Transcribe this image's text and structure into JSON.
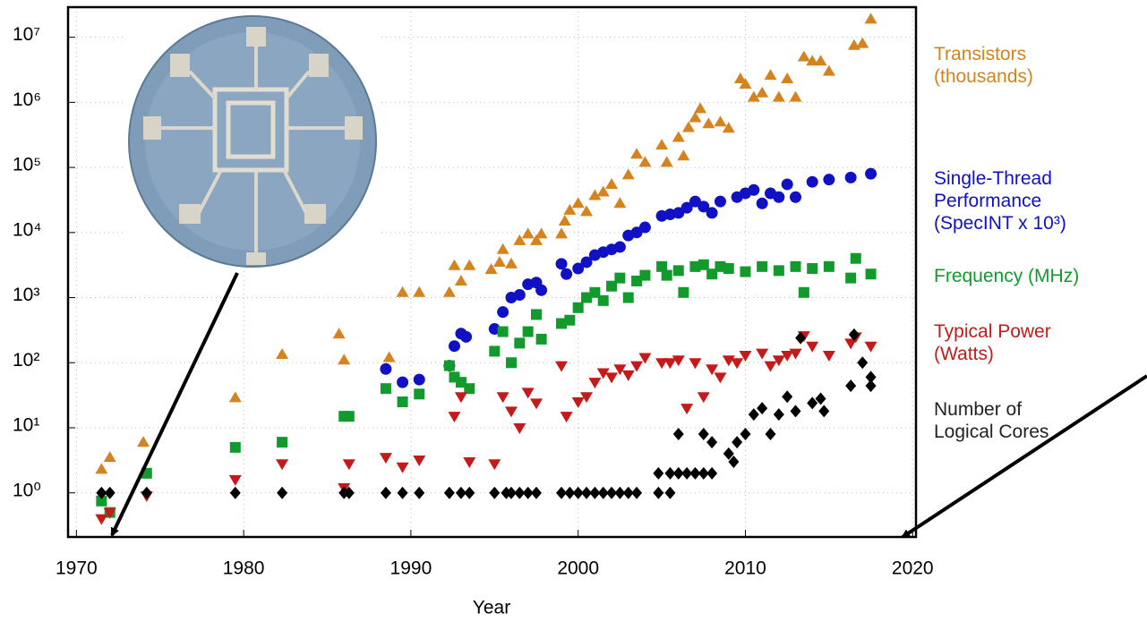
{
  "chart_data": {
    "type": "scatter",
    "x_label": "Year",
    "xlim": [
      1969.5,
      2020.2
    ],
    "xticks": [
      1970,
      1980,
      1990,
      2000,
      2010,
      2020
    ],
    "ylim": [
      0.21,
      29000000
    ],
    "yticks": [
      {
        "value": 1,
        "label": "10⁰"
      },
      {
        "value": 10,
        "label": "10¹"
      },
      {
        "value": 100,
        "label": "10²"
      },
      {
        "value": 1000,
        "label": "10³"
      },
      {
        "value": 10000,
        "label": "10⁴"
      },
      {
        "value": 100000,
        "label": "10⁵"
      },
      {
        "value": 1000000,
        "label": "10⁶"
      },
      {
        "value": 10000000,
        "label": "10⁷"
      }
    ],
    "log_y": true,
    "grid": true,
    "legend_position": "right",
    "series": [
      {
        "name": "Transistors (thousands)",
        "color": "#d4831e",
        "marker": "triangle-up",
        "x": [
          1971.5,
          1972,
          1974,
          1979.5,
          1982.3,
          1985.7,
          1986,
          1988.7,
          1989.5,
          1990.5,
          1992.3,
          1992.6,
          1993,
          1993.5,
          1994.8,
          1995.3,
          1995.5,
          1996,
          1996.5,
          1997,
          1997.5,
          1997.8,
          1999,
          1999.2,
          1999.5,
          2000,
          2000.5,
          2001,
          2001.5,
          2002,
          2002.5,
          2003,
          2003.5,
          2004,
          2005,
          2005.3,
          2006,
          2006.3,
          2006.6,
          2007,
          2007.3,
          2007.8,
          2008.5,
          2009,
          2009.7,
          2010,
          2010.5,
          2011,
          2011.5,
          2012,
          2012.5,
          2013,
          2013.5,
          2014,
          2014.5,
          2015,
          2016.5,
          2017,
          2017.5
        ],
        "values": [
          2.3,
          3.5,
          6,
          29,
          134,
          275,
          110,
          120,
          1200,
          1200,
          1200,
          3100,
          1800,
          3100,
          2700,
          3500,
          5500,
          3300,
          7500,
          9500,
          7500,
          9500,
          9500,
          15000,
          22000,
          28000,
          21000,
          37000,
          42000,
          55000,
          28000,
          77000,
          160000,
          120000,
          220000,
          120000,
          290000,
          150000,
          410000,
          580000,
          800000,
          470000,
          500000,
          400000,
          2300000,
          1900000,
          1200000,
          1400000,
          2600000,
          1200000,
          2300000,
          1200000,
          5000000,
          4300000,
          4300000,
          3000000,
          7500000,
          8000000,
          19000000
        ]
      },
      {
        "name": "Single-Thread Performance (SpecINT x 10³)",
        "color": "#1010c4",
        "marker": "circle",
        "x": [
          1988.5,
          1989.5,
          1990.5,
          1992.3,
          1992.6,
          1993,
          1993.3,
          1995,
          1995.5,
          1996,
          1996.5,
          1997,
          1997.5,
          1997.8,
          1999,
          1999.3,
          2000,
          2000.5,
          2001,
          2001.5,
          2002,
          2002.5,
          2003,
          2003.5,
          2004,
          2005,
          2005.5,
          2006,
          2006.5,
          2007,
          2007.5,
          2008,
          2008.5,
          2009.5,
          2010,
          2010.5,
          2011,
          2011.5,
          2012,
          2012.5,
          2013,
          2014,
          2015,
          2016.3,
          2017.5
        ],
        "values": [
          80,
          50,
          55,
          90,
          180,
          280,
          250,
          330,
          600,
          1000,
          1100,
          1600,
          1700,
          1300,
          3300,
          2300,
          2800,
          3500,
          4500,
          5000,
          5500,
          6000,
          9000,
          10000,
          12000,
          18000,
          19000,
          20000,
          24000,
          30000,
          25000,
          20000,
          30000,
          35000,
          40000,
          45000,
          28000,
          40000,
          35000,
          55000,
          35000,
          60000,
          65000,
          70000,
          80000
        ]
      },
      {
        "name": "Frequency (MHz)",
        "color": "#139a2c",
        "marker": "square",
        "x": [
          1971.5,
          1972,
          1974.2,
          1979.5,
          1982.3,
          1986,
          1986.3,
          1988.5,
          1989.5,
          1990.5,
          1992.3,
          1992.6,
          1993,
          1993.5,
          1995,
          1995.5,
          1996,
          1996.5,
          1997,
          1997.5,
          1997.8,
          1999,
          1999.5,
          2000,
          2000.5,
          2001,
          2001.5,
          2002,
          2002.5,
          2003,
          2003.5,
          2004,
          2005,
          2005.3,
          2006,
          2006.3,
          2007,
          2007.5,
          2008,
          2008.5,
          2009,
          2010,
          2011,
          2012,
          2013,
          2013.5,
          2014,
          2015,
          2016.3,
          2016.6,
          2017.5
        ],
        "values": [
          0.75,
          0.5,
          2,
          5,
          6,
          15,
          15,
          40,
          25,
          33,
          90,
          60,
          50,
          40,
          150,
          300,
          100,
          200,
          300,
          550,
          230,
          400,
          450,
          700,
          1000,
          1200,
          900,
          1500,
          2000,
          1000,
          1800,
          2200,
          3000,
          2200,
          2600,
          1200,
          3000,
          3200,
          2300,
          3000,
          2800,
          2500,
          3000,
          2600,
          3000,
          1200,
          2800,
          3000,
          2000,
          4000,
          2300
        ]
      },
      {
        "name": "Typical Power (Watts)",
        "color": "#c41a1a",
        "marker": "triangle-down",
        "x": [
          1971.5,
          1972,
          1974.2,
          1979.5,
          1982.3,
          1986,
          1986.3,
          1988.5,
          1989.5,
          1990.5,
          1992.6,
          1993,
          1993.5,
          1995,
          1995.5,
          1996,
          1996.5,
          1997,
          1997.5,
          1999,
          1999.3,
          2000,
          2000.5,
          2001,
          2001.5,
          2002,
          2002.5,
          2003,
          2003.5,
          2004,
          2005,
          2005.5,
          2006,
          2006.5,
          2007,
          2007.5,
          2008,
          2008.5,
          2009,
          2009.5,
          2010,
          2011,
          2011.5,
          2012,
          2012.5,
          2013,
          2013.5,
          2014,
          2015,
          2016.3,
          2016.6,
          2017.5
        ],
        "values": [
          0.4,
          0.5,
          0.9,
          1.6,
          2.8,
          1.2,
          2.8,
          3.5,
          2.5,
          3.2,
          15,
          30,
          3,
          2.8,
          30,
          18,
          10,
          35,
          24,
          90,
          15,
          25,
          30,
          50,
          70,
          60,
          80,
          65,
          90,
          120,
          100,
          100,
          110,
          20,
          100,
          30,
          80,
          60,
          110,
          100,
          130,
          140,
          90,
          110,
          130,
          140,
          260,
          180,
          130,
          200,
          250,
          180
        ]
      },
      {
        "name": "Number of Logical Cores",
        "color": "#000000",
        "marker": "diamond",
        "x": [
          1971.5,
          1972,
          1974.2,
          1979.5,
          1982.3,
          1986,
          1986.3,
          1988.5,
          1989.5,
          1990.5,
          1992.3,
          1993,
          1993.5,
          1995,
          1995.7,
          1996,
          1996.5,
          1997,
          1997.5,
          1999,
          1999.5,
          2000,
          2000.5,
          2001,
          2001.5,
          2002,
          2002.5,
          2003,
          2003.5,
          2004.8,
          2005.5,
          2004.8,
          2005.5,
          2006,
          2006,
          2006.5,
          2007,
          2007.5,
          2008,
          2007.5,
          2008,
          2009,
          2009.3,
          2009.5,
          2010,
          2010.5,
          2011,
          2011.5,
          2012,
          2012.5,
          2013,
          2013.3,
          2014,
          2014.5,
          2014.7,
          2016.3,
          2016.5,
          2017,
          2017.5,
          2017.5
        ],
        "values": [
          1,
          1,
          1,
          1,
          1,
          1,
          1,
          1,
          1,
          1,
          1,
          1,
          1,
          1,
          1,
          1,
          1,
          1,
          1,
          1,
          1,
          1,
          1,
          1,
          1,
          1,
          1,
          1,
          1,
          1,
          1,
          2,
          2,
          2,
          8,
          2,
          2,
          2,
          2,
          8,
          6,
          4,
          3,
          6,
          8,
          16,
          20,
          8,
          16,
          30,
          18,
          240,
          24,
          28,
          18,
          44,
          270,
          100,
          60,
          44
        ]
      }
    ]
  }
}
